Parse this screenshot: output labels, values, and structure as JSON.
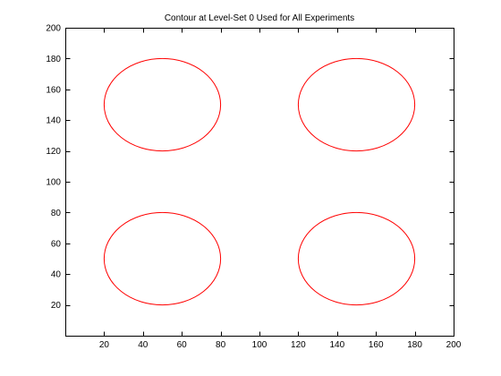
{
  "chart_data": {
    "type": "line",
    "title": "Contour at Level-Set 0 Used for All Experiments",
    "xlabel": "",
    "ylabel": "",
    "xlim": [
      0,
      200
    ],
    "ylim": [
      0,
      200
    ],
    "x_ticks": [
      20,
      40,
      60,
      80,
      100,
      120,
      140,
      160,
      180,
      200
    ],
    "y_ticks": [
      20,
      40,
      60,
      80,
      100,
      120,
      140,
      160,
      180,
      200
    ],
    "grid": false,
    "line_color": "#ff0000",
    "series": [
      {
        "shape": "ellipse",
        "cx": 50,
        "cy": 150,
        "rx": 30,
        "ry": 30
      },
      {
        "shape": "ellipse",
        "cx": 150,
        "cy": 150,
        "rx": 30,
        "ry": 30
      },
      {
        "shape": "ellipse",
        "cx": 50,
        "cy": 50,
        "rx": 30,
        "ry": 30
      },
      {
        "shape": "ellipse",
        "cx": 150,
        "cy": 50,
        "rx": 30,
        "ry": 30
      }
    ]
  }
}
